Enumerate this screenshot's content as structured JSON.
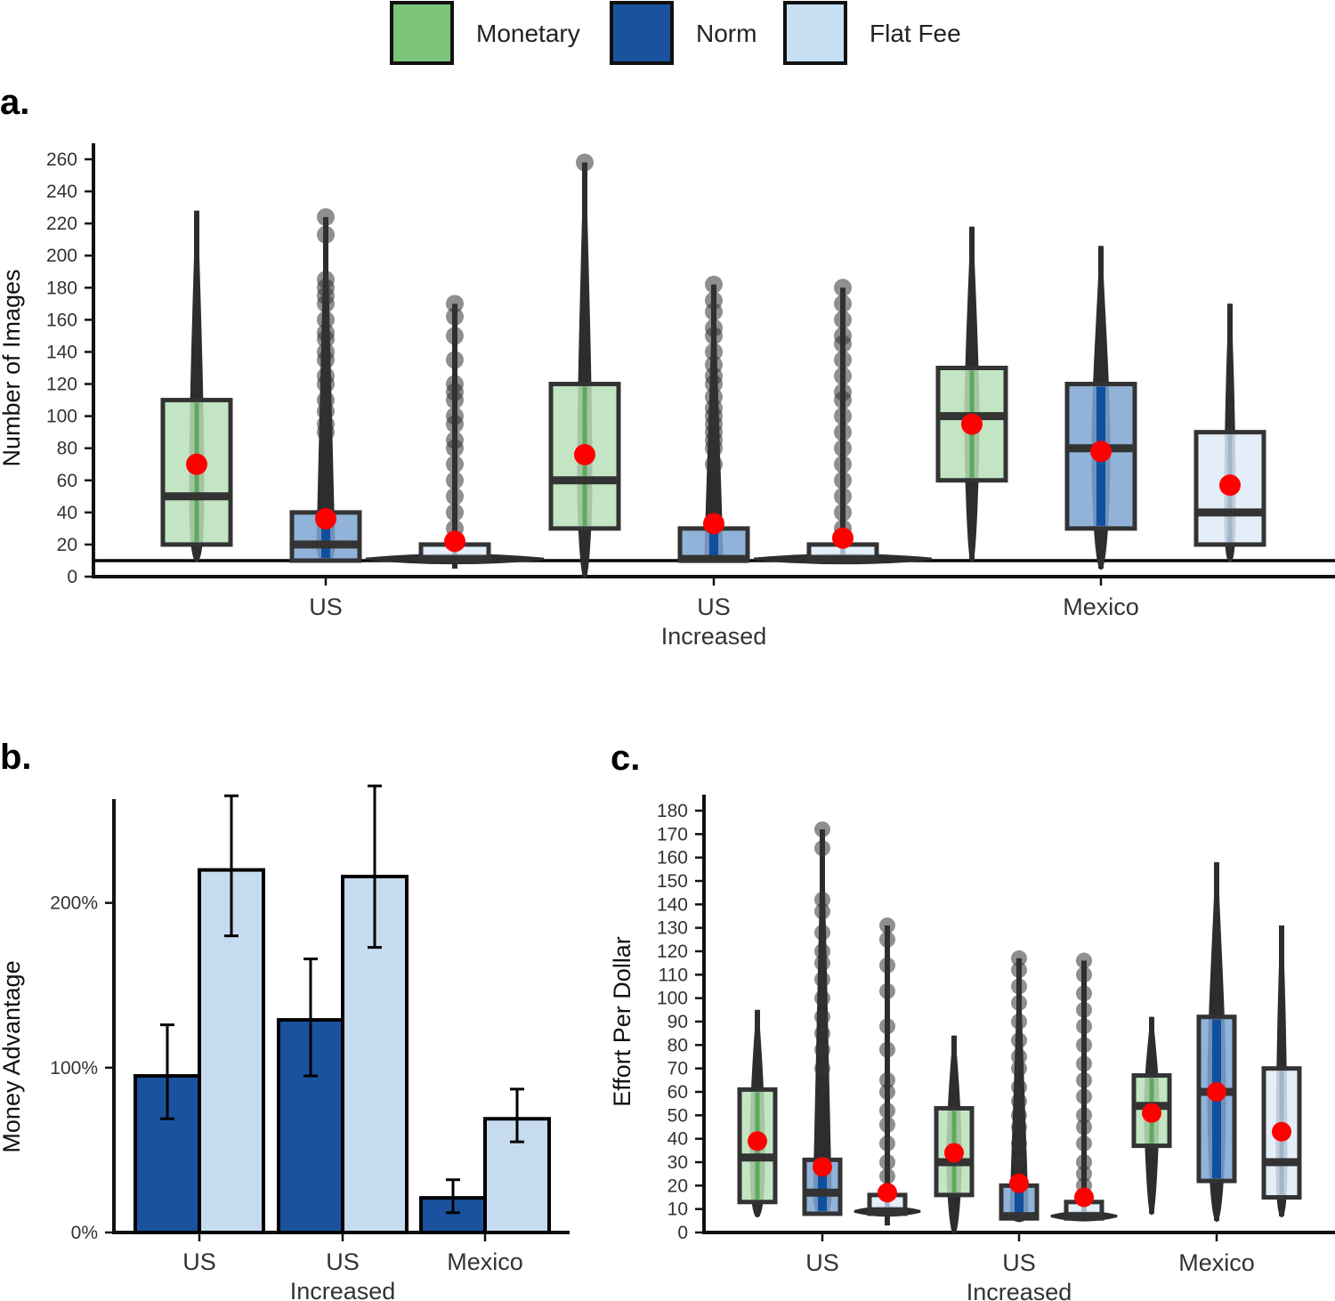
{
  "legend": {
    "items": [
      {
        "label": "Monetary",
        "color": "#7bc47a"
      },
      {
        "label": "Norm",
        "color": "#1a52a0"
      },
      {
        "label": "Flat Fee",
        "color": "#c6dff2"
      }
    ]
  },
  "colors": {
    "Monetary": {
      "fill": "#b9e0b8",
      "violin": "#5daa5c"
    },
    "Norm": {
      "fill": "#7ea6d2",
      "violin": "#0f4f9e"
    },
    "Flat Fee": {
      "fill": "#deebf7",
      "violin": "#9fb6cc"
    },
    "mean": "#ff0000",
    "bar_norm": "#1a52a0",
    "bar_flat": "#c6dbef"
  },
  "chart_data": [
    {
      "panel": "a.",
      "type": "box",
      "ylabel": "Number of Images",
      "ylim": [
        0,
        260
      ],
      "yticks": [
        0,
        20,
        40,
        60,
        80,
        100,
        120,
        140,
        160,
        180,
        200,
        220,
        240,
        260
      ],
      "reference_line": 10,
      "groups": [
        {
          "label": "US",
          "label2": "",
          "boxes": [
            {
              "series": "Monetary",
              "q1": 20,
              "median": 50,
              "q3": 110,
              "mean": 70,
              "max": 228,
              "min": 10,
              "outliers": []
            },
            {
              "series": "Norm",
              "q1": 10,
              "median": 20,
              "q3": 40,
              "mean": 36,
              "max": 224,
              "min": 10,
              "outliers": [
                224,
                213,
                185,
                180,
                175,
                170,
                160,
                152,
                148,
                140,
                135,
                125,
                120,
                110,
                103,
                95,
                90
              ]
            },
            {
              "series": "Flat Fee",
              "q1": 10,
              "median": 11,
              "q3": 20,
              "mean": 22,
              "max": 170,
              "min": 5,
              "outliers": [
                170,
                162,
                150,
                135,
                120,
                115,
                110,
                100,
                95,
                85,
                80,
                70,
                60,
                50,
                40,
                30
              ]
            }
          ]
        },
        {
          "label": "US",
          "label2": "Increased",
          "boxes": [
            {
              "series": "Monetary",
              "q1": 30,
              "median": 60,
              "q3": 120,
              "mean": 76,
              "max": 258,
              "min": 0,
              "outliers": [
                258
              ]
            },
            {
              "series": "Norm",
              "q1": 10,
              "median": 11,
              "q3": 30,
              "mean": 33,
              "max": 182,
              "min": 10,
              "outliers": [
                182,
                172,
                165,
                155,
                150,
                140,
                132,
                125,
                120,
                112,
                105,
                100,
                95,
                90,
                85,
                80,
                70
              ]
            },
            {
              "series": "Flat Fee",
              "q1": 10,
              "median": 11,
              "q3": 20,
              "mean": 24,
              "max": 180,
              "min": 10,
              "outliers": [
                180,
                170,
                160,
                150,
                145,
                135,
                125,
                115,
                110,
                100,
                90,
                80,
                70,
                60,
                50,
                40,
                30
              ]
            }
          ]
        },
        {
          "label": "Mexico",
          "label2": "",
          "boxes": [
            {
              "series": "Monetary",
              "q1": 60,
              "median": 100,
              "q3": 130,
              "mean": 95,
              "max": 218,
              "min": 10,
              "outliers": []
            },
            {
              "series": "Norm",
              "q1": 30,
              "median": 80,
              "q3": 120,
              "mean": 78,
              "max": 206,
              "min": 5,
              "outliers": []
            },
            {
              "series": "Flat Fee",
              "q1": 20,
              "median": 40,
              "q3": 90,
              "mean": 57,
              "max": 170,
              "min": 10,
              "outliers": []
            }
          ]
        }
      ]
    },
    {
      "panel": "b.",
      "type": "bar",
      "ylabel": "Money Advantage",
      "ylim": [
        0,
        270
      ],
      "yticks": [
        0,
        100,
        200
      ],
      "ytick_labels": [
        "0%",
        "100%",
        "200%"
      ],
      "categories": [
        "US",
        "US",
        "Mexico"
      ],
      "categories2": [
        "",
        "Increased",
        ""
      ],
      "series": [
        {
          "name": "Norm",
          "values": [
            95,
            129,
            21
          ],
          "err_low": [
            69,
            95,
            12
          ],
          "err_high": [
            126,
            166,
            32
          ]
        },
        {
          "name": "Flat Fee",
          "values": [
            220,
            216,
            69
          ],
          "err_low": [
            180,
            173,
            55
          ],
          "err_high": [
            265,
            271,
            87
          ]
        }
      ]
    },
    {
      "panel": "c.",
      "type": "box",
      "ylabel": "Effort Per Dollar",
      "ylim": [
        0,
        180
      ],
      "yticks": [
        0,
        10,
        20,
        30,
        40,
        50,
        60,
        70,
        80,
        90,
        100,
        110,
        120,
        130,
        140,
        150,
        160,
        170,
        180
      ],
      "reference_line": null,
      "groups": [
        {
          "label": "US",
          "label2": "",
          "boxes": [
            {
              "series": "Monetary",
              "q1": 13,
              "median": 32,
              "q3": 61,
              "mean": 39,
              "max": 95,
              "min": 7,
              "outliers": []
            },
            {
              "series": "Norm",
              "q1": 8,
              "median": 17,
              "q3": 31,
              "mean": 28,
              "max": 172,
              "min": 8,
              "outliers": [
                172,
                164,
                142,
                137,
                128,
                120,
                115,
                108,
                100,
                92,
                85,
                78,
                70
              ]
            },
            {
              "series": "Flat Fee",
              "q1": 8,
              "median": 9,
              "q3": 16,
              "mean": 17,
              "max": 131,
              "min": 3,
              "outliers": [
                131,
                125,
                114,
                103,
                88,
                78,
                65,
                60,
                52,
                46,
                38,
                30,
                24
              ]
            }
          ]
        },
        {
          "label": "US",
          "label2": "Increased",
          "boxes": [
            {
              "series": "Monetary",
              "q1": 16,
              "median": 30,
              "q3": 53,
              "mean": 34,
              "max": 84,
              "min": 0,
              "outliers": []
            },
            {
              "series": "Norm",
              "q1": 6,
              "median": 7,
              "q3": 20,
              "mean": 21,
              "max": 117,
              "min": 5,
              "outliers": [
                117,
                112,
                105,
                98,
                90,
                82,
                75,
                70,
                62,
                56,
                50,
                45,
                38,
                30
              ]
            },
            {
              "series": "Flat Fee",
              "q1": 6,
              "median": 7,
              "q3": 13,
              "mean": 15,
              "max": 116,
              "min": 6,
              "outliers": [
                116,
                110,
                102,
                95,
                88,
                80,
                72,
                65,
                58,
                50,
                45,
                38,
                30,
                25,
                20
              ]
            }
          ]
        },
        {
          "label": "Mexico",
          "label2": "",
          "boxes": [
            {
              "series": "Monetary",
              "q1": 37,
              "median": 54,
              "q3": 67,
              "mean": 51,
              "max": 92,
              "min": 8,
              "outliers": []
            },
            {
              "series": "Norm",
              "q1": 22,
              "median": 60,
              "q3": 92,
              "mean": 60,
              "max": 158,
              "min": 5,
              "outliers": []
            },
            {
              "series": "Flat Fee",
              "q1": 15,
              "median": 30,
              "q3": 70,
              "mean": 43,
              "max": 131,
              "min": 7,
              "outliers": []
            }
          ]
        }
      ]
    }
  ]
}
